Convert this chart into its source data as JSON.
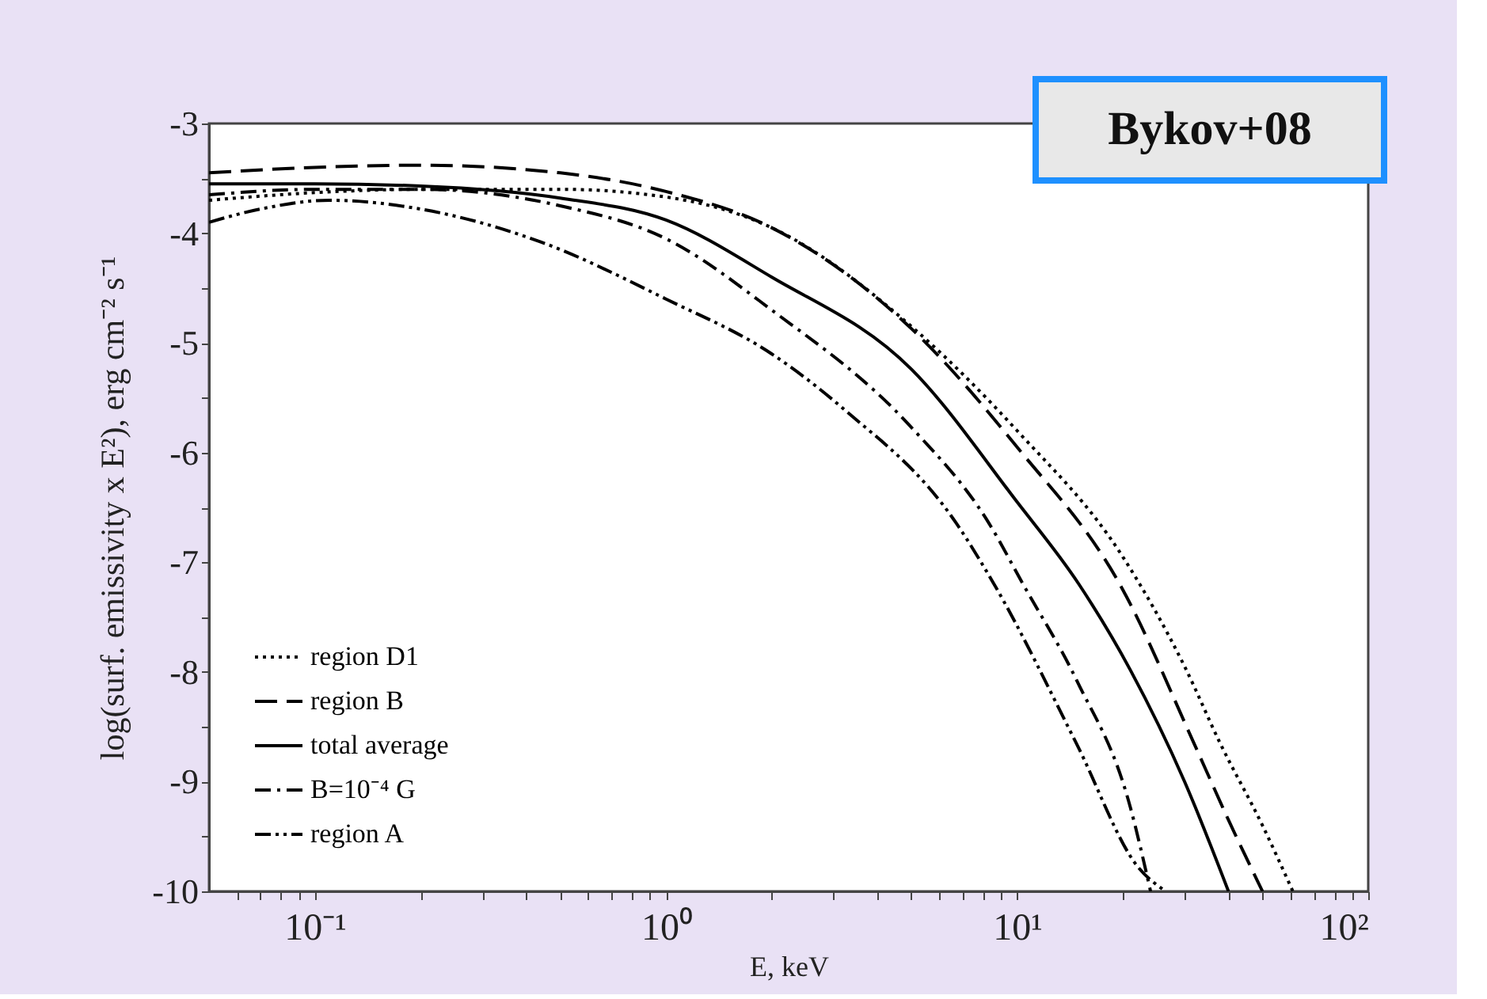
{
  "chart_data": {
    "type": "line",
    "xlabel": "E, keV",
    "ylabel": "log(surf. emissivity x E²),  erg cm⁻² s⁻¹",
    "log": "x",
    "xlim": [
      0.05,
      100
    ],
    "ylim": [
      -10,
      -3
    ],
    "xticks": [
      {
        "value": 0.06,
        "label": null
      },
      {
        "value": 0.07,
        "label": null
      },
      {
        "value": 0.08,
        "label": null
      },
      {
        "value": 0.09,
        "label": null
      },
      {
        "value": 0.1,
        "label": "10⁻¹"
      },
      {
        "value": 0.2,
        "label": null
      },
      {
        "value": 0.3,
        "label": null
      },
      {
        "value": 0.4,
        "label": null
      },
      {
        "value": 0.5,
        "label": null
      },
      {
        "value": 0.6,
        "label": null
      },
      {
        "value": 0.7,
        "label": null
      },
      {
        "value": 0.8,
        "label": null
      },
      {
        "value": 0.9,
        "label": null
      },
      {
        "value": 1,
        "label": "10⁰"
      },
      {
        "value": 2,
        "label": null
      },
      {
        "value": 3,
        "label": null
      },
      {
        "value": 4,
        "label": null
      },
      {
        "value": 5,
        "label": null
      },
      {
        "value": 6,
        "label": null
      },
      {
        "value": 7,
        "label": null
      },
      {
        "value": 8,
        "label": null
      },
      {
        "value": 9,
        "label": null
      },
      {
        "value": 10,
        "label": "10¹"
      },
      {
        "value": 20,
        "label": null
      },
      {
        "value": 30,
        "label": null
      },
      {
        "value": 40,
        "label": null
      },
      {
        "value": 50,
        "label": null
      },
      {
        "value": 60,
        "label": null
      },
      {
        "value": 70,
        "label": null
      },
      {
        "value": 80,
        "label": null
      },
      {
        "value": 90,
        "label": null
      },
      {
        "value": 100,
        "label": "10²"
      }
    ],
    "yticks": [
      -10,
      {
        "value": -9.5,
        "label": null
      },
      -9,
      {
        "value": -8.5,
        "label": null
      },
      -8,
      {
        "value": -7.5,
        "label": null
      },
      -7,
      {
        "value": -6.5,
        "label": null
      },
      -6,
      {
        "value": -5.5,
        "label": null
      },
      -5,
      {
        "value": -4.5,
        "label": null
      },
      -4,
      {
        "value": -3.5,
        "label": null
      },
      -3
    ],
    "grid": false,
    "legend": "bottom left",
    "marker": "none",
    "annotations": [
      "Bykov+08"
    ],
    "series": [
      {
        "name": "region D1",
        "color": "#000000",
        "line_style": "dotted",
        "x": [
          0.05,
          0.1,
          0.2,
          0.5,
          1,
          2,
          5,
          10,
          20,
          30,
          38,
          50,
          61
        ],
        "values": [
          -3.7,
          -3.63,
          -3.6,
          -3.6,
          -3.67,
          -3.95,
          -4.85,
          -5.8,
          -6.95,
          -7.95,
          -8.66,
          -9.4,
          -10
        ]
      },
      {
        "name": "region B",
        "color": "#000000",
        "line_style": "dashed",
        "x": [
          0.05,
          0.1,
          0.2,
          0.5,
          1,
          2,
          5,
          10,
          20,
          32,
          40,
          50
        ],
        "values": [
          -3.45,
          -3.4,
          -3.38,
          -3.45,
          -3.62,
          -3.95,
          -4.87,
          -5.95,
          -7.25,
          -8.66,
          -9.35,
          -10
        ]
      },
      {
        "name": "total average",
        "color": "#000000",
        "line_style": "solid",
        "x": [
          0.05,
          0.1,
          0.2,
          0.5,
          1,
          2,
          5,
          10,
          15,
          21,
          30,
          40
        ],
        "values": [
          -3.55,
          -3.55,
          -3.57,
          -3.68,
          -3.88,
          -4.4,
          -5.24,
          -6.45,
          -7.2,
          -7.98,
          -9.0,
          -10
        ]
      },
      {
        "name": "B=10⁻⁴ G",
        "color": "#000000",
        "line_style": "dashdot",
        "x": [
          0.05,
          0.1,
          0.2,
          0.5,
          1,
          2,
          5,
          8.3,
          10.4,
          14.8,
          21,
          24
        ],
        "values": [
          -3.65,
          -3.6,
          -3.6,
          -3.75,
          -4.05,
          -4.7,
          -5.77,
          -6.64,
          -7.2,
          -8.08,
          -9.23,
          -10
        ]
      },
      {
        "name": "region A",
        "color": "#000000",
        "line_style": "dashdotdot",
        "x": [
          0.05,
          0.07,
          0.11,
          0.2,
          0.44,
          1,
          2,
          3.2,
          6.7,
          8.6,
          14.8,
          22,
          26.5
        ],
        "values": [
          -3.9,
          -3.78,
          -3.7,
          -3.78,
          -4.08,
          -4.6,
          -5.1,
          -5.6,
          -6.64,
          -7.2,
          -8.66,
          -9.77,
          -10
        ]
      }
    ]
  }
}
